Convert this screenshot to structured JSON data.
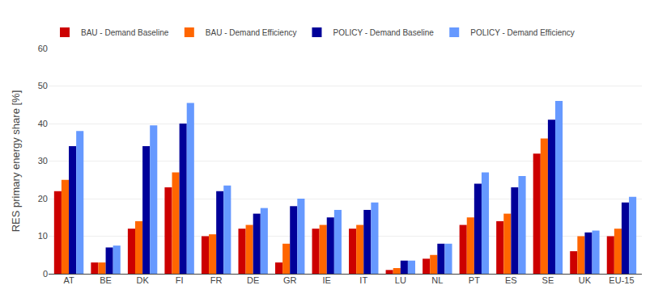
{
  "chart_data": {
    "type": "bar",
    "categories": [
      "AT",
      "BE",
      "DK",
      "FI",
      "FR",
      "DE",
      "GR",
      "IE",
      "IT",
      "LU",
      "NL",
      "PT",
      "ES",
      "SE",
      "UK",
      "EU-15"
    ],
    "series": [
      {
        "name": "BAU - Demand Baseline",
        "color": "#CC0000",
        "values": [
          22,
          3,
          12,
          23,
          10,
          12,
          3,
          12,
          12,
          1,
          4,
          13,
          14,
          32,
          6,
          10
        ]
      },
      {
        "name": "BAU - Demand Efficiency",
        "color": "#FF6600",
        "values": [
          25,
          3,
          14,
          27,
          10.5,
          13,
          8,
          13,
          13,
          1.5,
          5,
          15,
          16,
          36,
          10,
          12
        ]
      },
      {
        "name": "POLICY - Demand Baseline",
        "color": "#000099",
        "values": [
          34,
          7,
          34,
          40,
          22,
          16,
          18,
          15,
          17,
          3.5,
          8,
          24,
          23,
          41,
          11,
          19
        ]
      },
      {
        "name": "POLICY - Demand Efficiency",
        "color": "#6699FF",
        "values": [
          38,
          7.5,
          39.5,
          45.5,
          23.5,
          17.5,
          20,
          17,
          19,
          3.5,
          8,
          27,
          26,
          46,
          11.5,
          20.5
        ]
      }
    ],
    "ylabel": "RES primary energy share [%]",
    "ylim": [
      0,
      60
    ],
    "yticks": [
      0,
      10,
      20,
      30,
      40,
      50,
      60
    ],
    "grid": true,
    "legend": "upper left"
  }
}
